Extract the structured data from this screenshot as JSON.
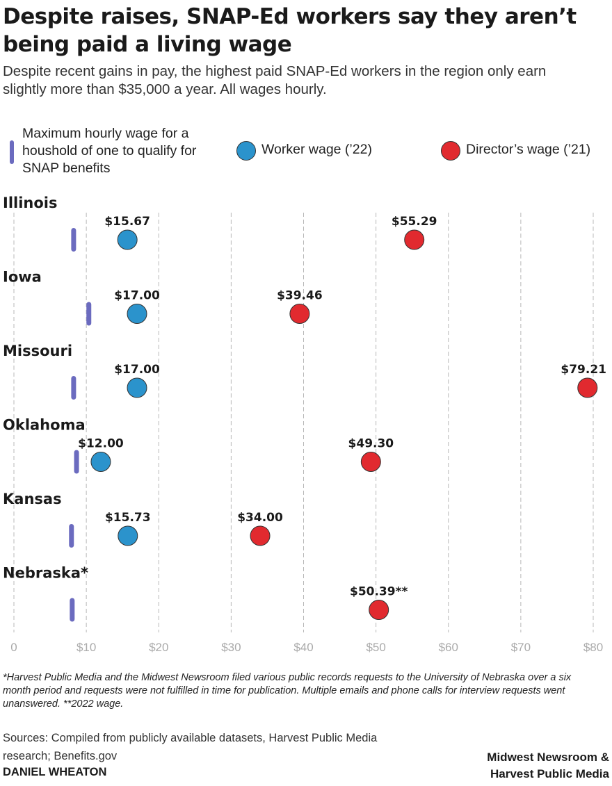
{
  "title": "Despite raises, SNAP-Ed workers say they aren’t being paid a living wage",
  "subtitle": "Despite recent gains in pay, the highest paid SNAP-Ed workers in the region only earn slightly more than $35,000 a year. All wages hourly.",
  "legend": {
    "threshold": "Maximum hourly wage for a houshold of one to qualify for SNAP benefits",
    "worker": "Worker wage (’22)",
    "director": "Director’s wage (’21)"
  },
  "colors": {
    "threshold": "#6b6bbf",
    "worker": "#2b93cc",
    "director": "#e12a2f",
    "gridline": "#b8b8b8",
    "tick_label": "#aaaaaa"
  },
  "chart_data": {
    "type": "scatter",
    "title": "Despite raises, SNAP-Ed workers say they aren’t being paid a living wage",
    "xlim": [
      0,
      80
    ],
    "x_ticks": [
      0,
      10,
      20,
      30,
      40,
      50,
      60,
      70,
      80
    ],
    "x_tick_labels": [
      "0",
      "$10",
      "$20",
      "$30",
      "$40",
      "$50",
      "$60",
      "$70",
      "$80"
    ],
    "grid": true,
    "legend_position": "top",
    "series": [
      {
        "name": "Maximum hourly wage for a houshold of one to qualify for SNAP benefits",
        "marker": "bar"
      },
      {
        "name": "Worker wage (’22)",
        "marker": "circle"
      },
      {
        "name": "Director’s wage (’21)",
        "marker": "circle"
      }
    ],
    "rows": [
      {
        "state": "Illinois",
        "threshold": 8.2,
        "worker": 15.67,
        "worker_label": "$15.67",
        "director": 55.29,
        "director_label": "$55.29"
      },
      {
        "state": "Iowa",
        "threshold": 10.3,
        "worker": 17.0,
        "worker_label": "$17.00",
        "director": 39.46,
        "director_label": "$39.46"
      },
      {
        "state": "Missouri",
        "threshold": 8.2,
        "worker": 17.0,
        "worker_label": "$17.00",
        "director": 79.21,
        "director_label": "$79.21"
      },
      {
        "state": "Oklahoma",
        "threshold": 8.6,
        "worker": 12.0,
        "worker_label": "$12.00",
        "director": 49.3,
        "director_label": "$49.30"
      },
      {
        "state": "Kansas",
        "threshold": 7.9,
        "worker": 15.73,
        "worker_label": "$15.73",
        "director": 34.0,
        "director_label": "$34.00"
      },
      {
        "state": "Nebraska*",
        "threshold": 8.0,
        "worker": null,
        "worker_label": "",
        "director": 50.39,
        "director_label": "$50.39**"
      }
    ]
  },
  "footnote": "*Harvest Public Media and the Midwest Newsroom filed various public records requests to the University of Nebraska over a six month period and requests were not fulfilled in time for publication. Multiple emails and phone calls for interview requests went unanswered. **2022 wage.",
  "sources": "Sources: Compiled from publicly available datasets, Harvest Public Media research; Benefits.gov",
  "byline": "DANIEL WHEATON",
  "credit": {
    "line1": "Midwest Newsroom &",
    "line2": "Harvest Public Media"
  }
}
